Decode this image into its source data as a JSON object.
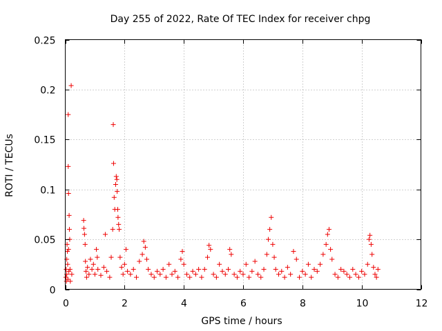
{
  "chart_data": {
    "type": "scatter",
    "title": "Day 255 of 2022, Rate Of TEC Index for receiver chpg",
    "xlabel": "GPS time / hours",
    "ylabel": "ROTI / TECUs",
    "xlim": [
      0,
      12
    ],
    "ylim": [
      0,
      0.25
    ],
    "x_ticks": [
      0,
      2,
      4,
      6,
      8,
      10,
      12
    ],
    "x_tick_labels": [
      "0",
      "2",
      "4",
      "6",
      "8",
      "10",
      "12"
    ],
    "y_ticks": [
      0,
      0.05,
      0.1,
      0.15,
      0.2,
      0.25
    ],
    "y_tick_labels": [
      "0",
      "0.05",
      "0.1",
      "0.15",
      "0.2",
      "0.25"
    ],
    "grid": true,
    "marker": "plus",
    "marker_color": "#ee0000",
    "series": [
      {
        "name": "ROTI",
        "points": [
          [
            0.02,
            0.012
          ],
          [
            0.03,
            0.02
          ],
          [
            0.04,
            0.008
          ],
          [
            0.05,
            0.03
          ],
          [
            0.05,
            0.015
          ],
          [
            0.06,
            0.045
          ],
          [
            0.07,
            0.038
          ],
          [
            0.08,
            0.025
          ],
          [
            0.09,
            0.01
          ],
          [
            0.1,
            0.175
          ],
          [
            0.1,
            0.123
          ],
          [
            0.11,
            0.096
          ],
          [
            0.11,
            0.04
          ],
          [
            0.12,
            0.018
          ],
          [
            0.13,
            0.074
          ],
          [
            0.14,
            0.06
          ],
          [
            0.15,
            0.05
          ],
          [
            0.16,
            0.02
          ],
          [
            0.17,
            0.008
          ],
          [
            0.2,
            0.204
          ],
          [
            0.22,
            0.015
          ],
          [
            0.62,
            0.069
          ],
          [
            0.63,
            0.061
          ],
          [
            0.65,
            0.055
          ],
          [
            0.67,
            0.045
          ],
          [
            0.68,
            0.028
          ],
          [
            0.7,
            0.018
          ],
          [
            0.72,
            0.012
          ],
          [
            0.75,
            0.022
          ],
          [
            0.8,
            0.015
          ],
          [
            0.85,
            0.03
          ],
          [
            0.9,
            0.02
          ],
          [
            0.95,
            0.025
          ],
          [
            1.0,
            0.015
          ],
          [
            1.05,
            0.04
          ],
          [
            1.08,
            0.032
          ],
          [
            1.1,
            0.02
          ],
          [
            1.2,
            0.014
          ],
          [
            1.3,
            0.022
          ],
          [
            1.35,
            0.055
          ],
          [
            1.4,
            0.018
          ],
          [
            1.5,
            0.012
          ],
          [
            1.55,
            0.032
          ],
          [
            1.6,
            0.06
          ],
          [
            1.62,
            0.165
          ],
          [
            1.63,
            0.126
          ],
          [
            1.65,
            0.092
          ],
          [
            1.67,
            0.08
          ],
          [
            1.7,
            0.105
          ],
          [
            1.72,
            0.113
          ],
          [
            1.74,
            0.11
          ],
          [
            1.75,
            0.098
          ],
          [
            1.77,
            0.08
          ],
          [
            1.78,
            0.072
          ],
          [
            1.8,
            0.065
          ],
          [
            1.82,
            0.06
          ],
          [
            1.85,
            0.032
          ],
          [
            1.9,
            0.022
          ],
          [
            1.95,
            0.015
          ],
          [
            2.0,
            0.025
          ],
          [
            2.05,
            0.04
          ],
          [
            2.1,
            0.018
          ],
          [
            2.2,
            0.015
          ],
          [
            2.3,
            0.02
          ],
          [
            2.4,
            0.012
          ],
          [
            2.5,
            0.028
          ],
          [
            2.6,
            0.035
          ],
          [
            2.65,
            0.048
          ],
          [
            2.7,
            0.042
          ],
          [
            2.75,
            0.03
          ],
          [
            2.8,
            0.02
          ],
          [
            2.9,
            0.015
          ],
          [
            3.0,
            0.012
          ],
          [
            3.1,
            0.018
          ],
          [
            3.2,
            0.015
          ],
          [
            3.3,
            0.02
          ],
          [
            3.4,
            0.012
          ],
          [
            3.5,
            0.025
          ],
          [
            3.6,
            0.015
          ],
          [
            3.7,
            0.018
          ],
          [
            3.8,
            0.012
          ],
          [
            3.9,
            0.03
          ],
          [
            3.95,
            0.038
          ],
          [
            4.0,
            0.025
          ],
          [
            4.1,
            0.015
          ],
          [
            4.2,
            0.012
          ],
          [
            4.3,
            0.018
          ],
          [
            4.4,
            0.015
          ],
          [
            4.5,
            0.02
          ],
          [
            4.6,
            0.012
          ],
          [
            4.7,
            0.02
          ],
          [
            4.8,
            0.032
          ],
          [
            4.85,
            0.044
          ],
          [
            4.9,
            0.04
          ],
          [
            5.0,
            0.015
          ],
          [
            5.1,
            0.012
          ],
          [
            5.2,
            0.025
          ],
          [
            5.3,
            0.018
          ],
          [
            5.4,
            0.015
          ],
          [
            5.5,
            0.02
          ],
          [
            5.55,
            0.04
          ],
          [
            5.6,
            0.035
          ],
          [
            5.7,
            0.015
          ],
          [
            5.8,
            0.012
          ],
          [
            5.9,
            0.018
          ],
          [
            6.0,
            0.015
          ],
          [
            6.1,
            0.025
          ],
          [
            6.2,
            0.012
          ],
          [
            6.3,
            0.018
          ],
          [
            6.4,
            0.028
          ],
          [
            6.5,
            0.015
          ],
          [
            6.6,
            0.012
          ],
          [
            6.7,
            0.02
          ],
          [
            6.8,
            0.035
          ],
          [
            6.85,
            0.05
          ],
          [
            6.9,
            0.06
          ],
          [
            6.95,
            0.072
          ],
          [
            7.0,
            0.045
          ],
          [
            7.05,
            0.032
          ],
          [
            7.1,
            0.02
          ],
          [
            7.2,
            0.015
          ],
          [
            7.3,
            0.018
          ],
          [
            7.4,
            0.012
          ],
          [
            7.5,
            0.022
          ],
          [
            7.6,
            0.015
          ],
          [
            7.7,
            0.038
          ],
          [
            7.8,
            0.03
          ],
          [
            7.9,
            0.012
          ],
          [
            8.0,
            0.018
          ],
          [
            8.1,
            0.015
          ],
          [
            8.2,
            0.025
          ],
          [
            8.3,
            0.012
          ],
          [
            8.4,
            0.02
          ],
          [
            8.5,
            0.018
          ],
          [
            8.6,
            0.025
          ],
          [
            8.7,
            0.035
          ],
          [
            8.8,
            0.045
          ],
          [
            8.85,
            0.055
          ],
          [
            8.9,
            0.06
          ],
          [
            8.95,
            0.04
          ],
          [
            9.0,
            0.03
          ],
          [
            9.1,
            0.015
          ],
          [
            9.2,
            0.012
          ],
          [
            9.3,
            0.02
          ],
          [
            9.4,
            0.018
          ],
          [
            9.5,
            0.015
          ],
          [
            9.6,
            0.012
          ],
          [
            9.7,
            0.02
          ],
          [
            9.8,
            0.015
          ],
          [
            9.9,
            0.012
          ],
          [
            10.0,
            0.018
          ],
          [
            10.1,
            0.015
          ],
          [
            10.2,
            0.025
          ],
          [
            10.25,
            0.05
          ],
          [
            10.28,
            0.054
          ],
          [
            10.32,
            0.045
          ],
          [
            10.35,
            0.035
          ],
          [
            10.4,
            0.022
          ],
          [
            10.45,
            0.015
          ],
          [
            10.5,
            0.012
          ],
          [
            10.55,
            0.02
          ]
        ]
      }
    ]
  }
}
